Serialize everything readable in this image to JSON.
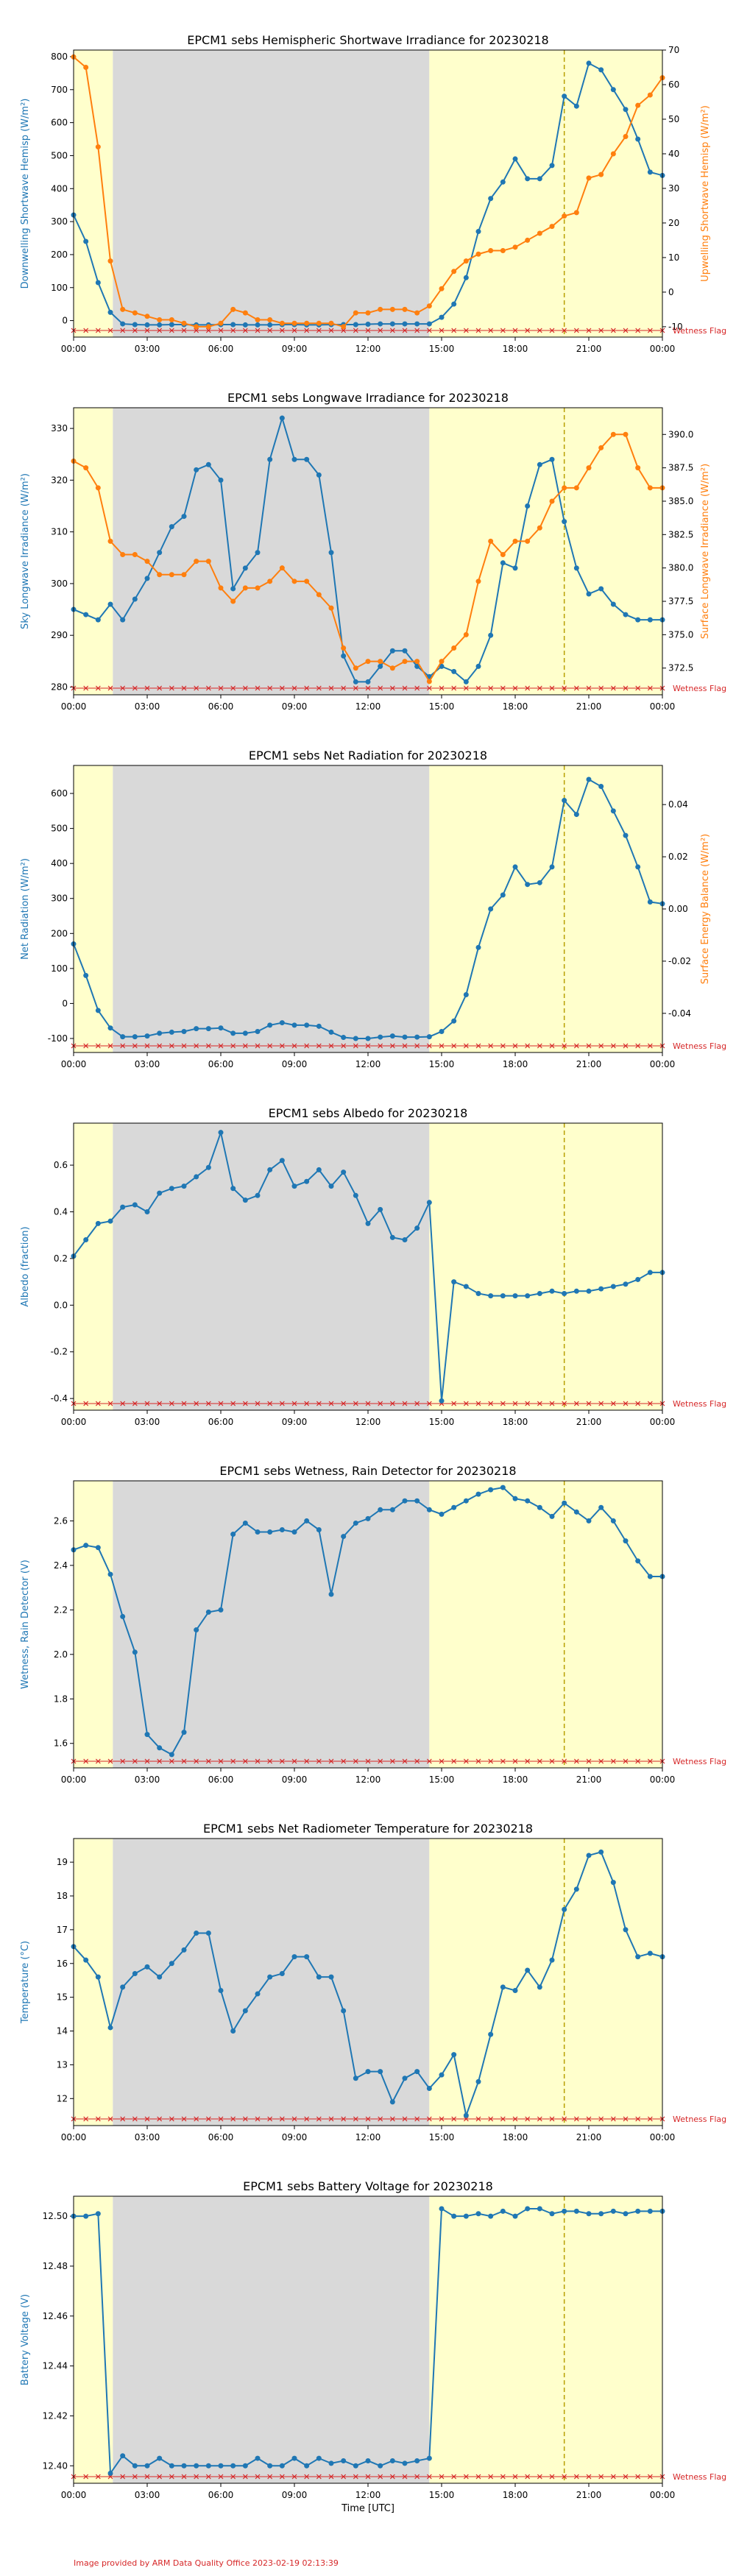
{
  "footer": "Image provided by ARM Data Quality Office 2023-02-19 02:13:39",
  "colors": {
    "primary": "#1f77b4",
    "secondary": "#ff7f0e",
    "night": "#d9d9d9",
    "day": "#ffffcc",
    "flag": "#d62728",
    "noon_line": "#b8a000"
  },
  "x_ticks": [
    "00:00",
    "03:00",
    "06:00",
    "09:00",
    "12:00",
    "15:00",
    "18:00",
    "21:00",
    "00:00"
  ],
  "xlabel": "Time [UTC]",
  "flag_label": "Wetness Flag",
  "shading": {
    "night_start_hour": 1.6,
    "night_end_hour": 14.5,
    "noon_marker_hour": 20.0
  },
  "chart_data": [
    {
      "type": "line",
      "title": "EPCM1 sebs Hemispheric Shortwave Irradiance for 20230218",
      "ylabel": "Downwelling Shortwave Hemisp (W/m²)",
      "y2label": "Upwelling Shortwave Hemisp (W/m²)",
      "ylim": [
        -50,
        820
      ],
      "yticks": [
        0,
        100,
        200,
        300,
        400,
        500,
        600,
        700,
        800
      ],
      "y2lim": [
        -13,
        70
      ],
      "y2ticks": [
        -10,
        0,
        10,
        20,
        30,
        40,
        50,
        60,
        70
      ],
      "series": [
        {
          "axis": "left",
          "x": [
            0,
            0.5,
            1,
            1.5,
            2,
            2.5,
            3,
            3.5,
            4,
            4.5,
            5,
            5.5,
            6,
            6.5,
            7,
            7.5,
            8,
            8.5,
            9,
            9.5,
            10,
            10.5,
            11,
            11.5,
            12,
            12.5,
            13,
            13.5,
            14,
            14.5,
            15,
            15.5,
            16,
            16.5,
            17,
            17.5,
            18,
            18.5,
            19,
            19.5,
            20,
            20.5,
            21,
            21.5,
            22,
            22.5,
            23,
            23.5,
            24
          ],
          "values": [
            320,
            240,
            115,
            25,
            -10,
            -12,
            -13,
            -13,
            -12,
            -12,
            -13,
            -13,
            -12,
            -12,
            -13,
            -13,
            -13,
            -12,
            -12,
            -13,
            -13,
            -12,
            -12,
            -12,
            -11,
            -10,
            -10,
            -10,
            -10,
            -10,
            10,
            50,
            130,
            270,
            370,
            420,
            490,
            430,
            430,
            470,
            680,
            650,
            780,
            760,
            700,
            640,
            550,
            450,
            440
          ]
        },
        {
          "axis": "right",
          "x": [
            0,
            0.5,
            1,
            1.5,
            2,
            2.5,
            3,
            3.5,
            4,
            4.5,
            5,
            5.5,
            6,
            6.5,
            7,
            7.5,
            8,
            8.5,
            9,
            9.5,
            10,
            10.5,
            11,
            11.5,
            12,
            12.5,
            13,
            13.5,
            14,
            14.5,
            15,
            15.5,
            16,
            16.5,
            17,
            17.5,
            18,
            18.5,
            19,
            19.5,
            20,
            20.5,
            21,
            21.5,
            22,
            22.5,
            23,
            23.5,
            24
          ],
          "values": [
            68,
            65,
            42,
            9,
            -5,
            -6,
            -7,
            -8,
            -8,
            -9,
            -10,
            -10,
            -9,
            -5,
            -6,
            -8,
            -8,
            -9,
            -9,
            -9,
            -9,
            -9,
            -10,
            -6,
            -6,
            -5,
            -5,
            -5,
            -6,
            -4,
            1,
            6,
            9,
            11,
            12,
            12,
            13,
            15,
            17,
            19,
            22,
            23,
            33,
            34,
            40,
            45,
            54,
            57,
            62
          ]
        }
      ]
    },
    {
      "type": "line",
      "title": "EPCM1 sebs Longwave Irradiance for 20230218",
      "ylabel": "Sky Longwave Irradiance (W/m²)",
      "y2label": "Surface Longwave Irradiance (W/m²)",
      "ylim": [
        278.5,
        334
      ],
      "yticks": [
        280,
        290,
        300,
        310,
        320,
        330
      ],
      "y2lim": [
        370.5,
        392
      ],
      "y2ticks": [
        372.5,
        375.0,
        377.5,
        380.0,
        382.5,
        385.0,
        387.5,
        390.0
      ],
      "series": [
        {
          "axis": "left",
          "x": [
            0,
            0.5,
            1,
            1.5,
            2,
            2.5,
            3,
            3.5,
            4,
            4.5,
            5,
            5.5,
            6,
            6.5,
            7,
            7.5,
            8,
            8.5,
            9,
            9.5,
            10,
            10.5,
            11,
            11.5,
            12,
            12.5,
            13,
            13.5,
            14,
            14.5,
            15,
            15.5,
            16,
            16.5,
            17,
            17.5,
            18,
            18.5,
            19,
            19.5,
            20,
            20.5,
            21,
            21.5,
            22,
            22.5,
            23,
            23.5,
            24
          ],
          "values": [
            295,
            294,
            293,
            296,
            293,
            297,
            301,
            306,
            311,
            313,
            322,
            323,
            320,
            299,
            303,
            306,
            324,
            332,
            324,
            324,
            321,
            306,
            286,
            281,
            281,
            284,
            287,
            287,
            284,
            282,
            284,
            283,
            281,
            284,
            290,
            304,
            303,
            315,
            323,
            324,
            312,
            303,
            298,
            299,
            296,
            294,
            293,
            293,
            293
          ]
        },
        {
          "axis": "right",
          "x": [
            0,
            0.5,
            1,
            1.5,
            2,
            2.5,
            3,
            3.5,
            4,
            4.5,
            5,
            5.5,
            6,
            6.5,
            7,
            7.5,
            8,
            8.5,
            9,
            9.5,
            10,
            10.5,
            11,
            11.5,
            12,
            12.5,
            13,
            13.5,
            14,
            14.5,
            15,
            15.5,
            16,
            16.5,
            17,
            17.5,
            18,
            18.5,
            19,
            19.5,
            20,
            20.5,
            21,
            21.5,
            22,
            22.5,
            23,
            23.5,
            24
          ],
          "values": [
            388,
            387.5,
            386,
            382,
            381,
            381,
            380.5,
            379.5,
            379.5,
            379.5,
            380.5,
            380.5,
            378.5,
            377.5,
            378.5,
            378.5,
            379,
            380,
            379,
            379,
            378,
            377,
            374,
            372.5,
            373,
            373,
            372.5,
            373,
            373,
            371.5,
            373,
            374,
            375,
            379,
            382,
            381,
            382,
            382,
            383,
            385,
            386,
            386,
            387.5,
            389,
            390,
            390,
            387.5,
            386,
            386
          ]
        }
      ]
    },
    {
      "type": "line",
      "title": "EPCM1 sebs Net Radiation for 20230218",
      "ylabel": "Net Radiation (W/m²)",
      "y2label": "Surface Energy Balance (W/m²)",
      "ylim": [
        -140,
        680
      ],
      "yticks": [
        -100,
        0,
        100,
        200,
        300,
        400,
        500,
        600
      ],
      "y2lim": [
        -0.055,
        0.055
      ],
      "y2ticks": [
        -0.04,
        -0.02,
        0.0,
        0.02,
        0.04
      ],
      "series": [
        {
          "axis": "left",
          "x": [
            0,
            0.5,
            1,
            1.5,
            2,
            2.5,
            3,
            3.5,
            4,
            4.5,
            5,
            5.5,
            6,
            6.5,
            7,
            7.5,
            8,
            8.5,
            9,
            9.5,
            10,
            10.5,
            11,
            11.5,
            12,
            12.5,
            13,
            13.5,
            14,
            14.5,
            15,
            15.5,
            16,
            16.5,
            17,
            17.5,
            18,
            18.5,
            19,
            19.5,
            20,
            20.5,
            21,
            21.5,
            22,
            22.5,
            23,
            23.5,
            24
          ],
          "values": [
            170,
            80,
            -20,
            -70,
            -95,
            -95,
            -93,
            -85,
            -82,
            -80,
            -72,
            -72,
            -70,
            -85,
            -85,
            -80,
            -62,
            -55,
            -62,
            -62,
            -65,
            -82,
            -97,
            -100,
            -100,
            -96,
            -93,
            -96,
            -96,
            -95,
            -80,
            -50,
            25,
            160,
            270,
            310,
            390,
            340,
            345,
            390,
            580,
            540,
            640,
            620,
            550,
            480,
            390,
            290,
            285
          ]
        }
      ]
    },
    {
      "type": "line",
      "title": "EPCM1 sebs Albedo for 20230218",
      "ylabel": "Albedo (fraction)",
      "ylim": [
        -0.45,
        0.78
      ],
      "yticks": [
        -0.4,
        -0.2,
        0.0,
        0.2,
        0.4,
        0.6
      ],
      "series": [
        {
          "axis": "left",
          "x": [
            0,
            0.5,
            1,
            1.5,
            2,
            2.5,
            3,
            3.5,
            4,
            4.5,
            5,
            5.5,
            6,
            6.5,
            7,
            7.5,
            8,
            8.5,
            9,
            9.5,
            10,
            10.5,
            11,
            11.5,
            12,
            12.5,
            13,
            13.5,
            14,
            14.5,
            15,
            15.5,
            16,
            16.5,
            17,
            17.5,
            18,
            18.5,
            19,
            19.5,
            20,
            20.5,
            21,
            21.5,
            22,
            22.5,
            23,
            23.5,
            24
          ],
          "values": [
            0.21,
            0.28,
            0.35,
            0.36,
            0.42,
            0.43,
            0.4,
            0.48,
            0.5,
            0.51,
            0.55,
            0.59,
            0.74,
            0.5,
            0.45,
            0.47,
            0.58,
            0.62,
            0.51,
            0.53,
            0.58,
            0.51,
            0.57,
            0.47,
            0.35,
            0.41,
            0.29,
            0.28,
            0.33,
            0.44,
            -0.41,
            0.1,
            0.08,
            0.05,
            0.04,
            0.04,
            0.04,
            0.04,
            0.05,
            0.06,
            0.05,
            0.06,
            0.06,
            0.07,
            0.08,
            0.09,
            0.11,
            0.14,
            0.14
          ]
        }
      ]
    },
    {
      "type": "line",
      "title": "EPCM1 sebs Wetness, Rain Detector for 20230218",
      "ylabel": "Wetness, Rain Detector (V)",
      "ylim": [
        1.49,
        2.78
      ],
      "yticks": [
        1.6,
        1.8,
        2.0,
        2.2,
        2.4,
        2.6
      ],
      "series": [
        {
          "axis": "left",
          "x": [
            0,
            0.5,
            1,
            1.5,
            2,
            2.5,
            3,
            3.5,
            4,
            4.5,
            5,
            5.5,
            6,
            6.5,
            7,
            7.5,
            8,
            8.5,
            9,
            9.5,
            10,
            10.5,
            11,
            11.5,
            12,
            12.5,
            13,
            13.5,
            14,
            14.5,
            15,
            15.5,
            16,
            16.5,
            17,
            17.5,
            18,
            18.5,
            19,
            19.5,
            20,
            20.5,
            21,
            21.5,
            22,
            22.5,
            23,
            23.5,
            24
          ],
          "values": [
            2.47,
            2.49,
            2.48,
            2.36,
            2.17,
            2.01,
            1.64,
            1.58,
            1.55,
            1.65,
            2.11,
            2.19,
            2.2,
            2.54,
            2.59,
            2.55,
            2.55,
            2.56,
            2.55,
            2.6,
            2.56,
            2.27,
            2.53,
            2.59,
            2.61,
            2.65,
            2.65,
            2.69,
            2.69,
            2.65,
            2.63,
            2.66,
            2.69,
            2.72,
            2.74,
            2.75,
            2.7,
            2.69,
            2.66,
            2.62,
            2.68,
            2.64,
            2.6,
            2.66,
            2.6,
            2.51,
            2.42,
            2.35,
            2.35
          ]
        }
      ]
    },
    {
      "type": "line",
      "title": "EPCM1 sebs Net Radiometer Temperature for 20230218",
      "ylabel": "Temperature (°C)",
      "ylim": [
        11.2,
        19.7
      ],
      "yticks": [
        12,
        13,
        14,
        15,
        16,
        17,
        18,
        19
      ],
      "series": [
        {
          "axis": "left",
          "x": [
            0,
            0.5,
            1,
            1.5,
            2,
            2.5,
            3,
            3.5,
            4,
            4.5,
            5,
            5.5,
            6,
            6.5,
            7,
            7.5,
            8,
            8.5,
            9,
            9.5,
            10,
            10.5,
            11,
            11.5,
            12,
            12.5,
            13,
            13.5,
            14,
            14.5,
            15,
            15.5,
            16,
            16.5,
            17,
            17.5,
            18,
            18.5,
            19,
            19.5,
            20,
            20.5,
            21,
            21.5,
            22,
            22.5,
            23,
            23.5,
            24
          ],
          "values": [
            16.5,
            16.1,
            15.6,
            14.1,
            15.3,
            15.7,
            15.9,
            15.6,
            16.0,
            16.4,
            16.9,
            16.9,
            15.2,
            14.0,
            14.6,
            15.1,
            15.6,
            15.7,
            16.2,
            16.2,
            15.6,
            15.6,
            14.6,
            12.6,
            12.8,
            12.8,
            11.9,
            12.6,
            12.8,
            12.3,
            12.7,
            13.3,
            11.5,
            12.5,
            13.9,
            15.3,
            15.2,
            15.8,
            15.3,
            16.1,
            17.6,
            18.2,
            19.2,
            19.3,
            18.4,
            17.0,
            16.2,
            16.3,
            16.2
          ]
        }
      ]
    },
    {
      "type": "line",
      "title": "EPCM1 sebs Battery Voltage for 20230218",
      "ylabel": "Battery Voltage (V)",
      "ylim": [
        12.393,
        12.508
      ],
      "yticks": [
        12.4,
        12.42,
        12.44,
        12.46,
        12.48,
        12.5
      ],
      "series": [
        {
          "axis": "left",
          "x": [
            0,
            0.5,
            1,
            1.5,
            2,
            2.5,
            3,
            3.5,
            4,
            4.5,
            5,
            5.5,
            6,
            6.5,
            7,
            7.5,
            8,
            8.5,
            9,
            9.5,
            10,
            10.5,
            11,
            11.5,
            12,
            12.5,
            13,
            13.5,
            14,
            14.5,
            15,
            15.5,
            16,
            16.5,
            17,
            17.5,
            18,
            18.5,
            19,
            19.5,
            20,
            20.5,
            21,
            21.5,
            22,
            22.5,
            23,
            23.5,
            24
          ],
          "values": [
            12.5,
            12.5,
            12.501,
            12.397,
            12.404,
            12.4,
            12.4,
            12.403,
            12.4,
            12.4,
            12.4,
            12.4,
            12.4,
            12.4,
            12.4,
            12.403,
            12.4,
            12.4,
            12.403,
            12.4,
            12.403,
            12.401,
            12.402,
            12.4,
            12.402,
            12.4,
            12.402,
            12.401,
            12.402,
            12.403,
            12.503,
            12.5,
            12.5,
            12.501,
            12.5,
            12.502,
            12.5,
            12.503,
            12.503,
            12.501,
            12.502,
            12.502,
            12.501,
            12.501,
            12.502,
            12.501,
            12.502,
            12.502,
            12.502
          ]
        }
      ]
    }
  ]
}
